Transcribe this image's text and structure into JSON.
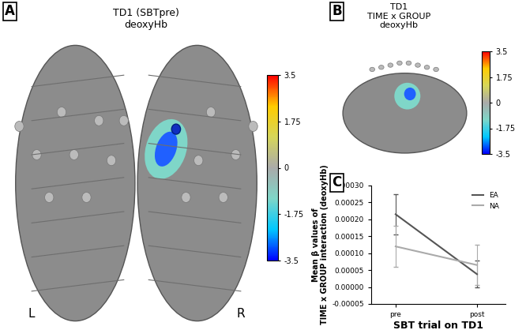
{
  "figure": {
    "panel_A": {
      "label": "A",
      "title": [
        "TD1 (SBTpre)",
        "deoxyHb"
      ],
      "left_label": "L",
      "right_label": "R",
      "colorbar": {
        "range": [
          -3.5,
          3.5
        ],
        "ticks": [
          3.5,
          1.75,
          0,
          -1.75,
          -3.5
        ]
      }
    },
    "panel_B": {
      "label": "B",
      "title": [
        "TD1",
        "TIME x GROUP",
        "deoxyHb"
      ],
      "colorbar": {
        "range": [
          -3.5,
          3.5
        ],
        "ticks": [
          3.5,
          1.75,
          0,
          -1.75,
          -3.5
        ]
      }
    }
  },
  "chart_data": {
    "type": "line",
    "panel": "C",
    "categories": [
      "pre",
      "post"
    ],
    "series": [
      {
        "name": "EA",
        "color": "#555555",
        "values": [
          0.000215,
          3.8e-05
        ],
        "errors": [
          6e-05,
          4e-05
        ]
      },
      {
        "name": "NA",
        "color": "#aaaaaa",
        "values": [
          0.00012,
          6.5e-05
        ],
        "errors": [
          6e-05,
          6e-05
        ]
      }
    ],
    "xlabel": "SBT trial on TD1",
    "ylabel": [
      "Mean β values of",
      "TIME x GROUP interaction (deoxyHb)"
    ],
    "ylim": [
      -5e-05,
      0.0003
    ],
    "yticks": [
      {
        "value": -5e-05,
        "label": "-0.00005"
      },
      {
        "value": 0,
        "label": "0.00000"
      },
      {
        "value": 5e-05,
        "label": "0.00005"
      },
      {
        "value": 0.0001,
        "label": "0.00010"
      },
      {
        "value": 0.00015,
        "label": "0.00015"
      },
      {
        "value": 0.0002,
        "label": "0.00020"
      },
      {
        "value": 0.00025,
        "label": "0.00025"
      },
      {
        "value": 0.0003,
        "label": "0.00030"
      }
    ],
    "legend": "upper right"
  }
}
